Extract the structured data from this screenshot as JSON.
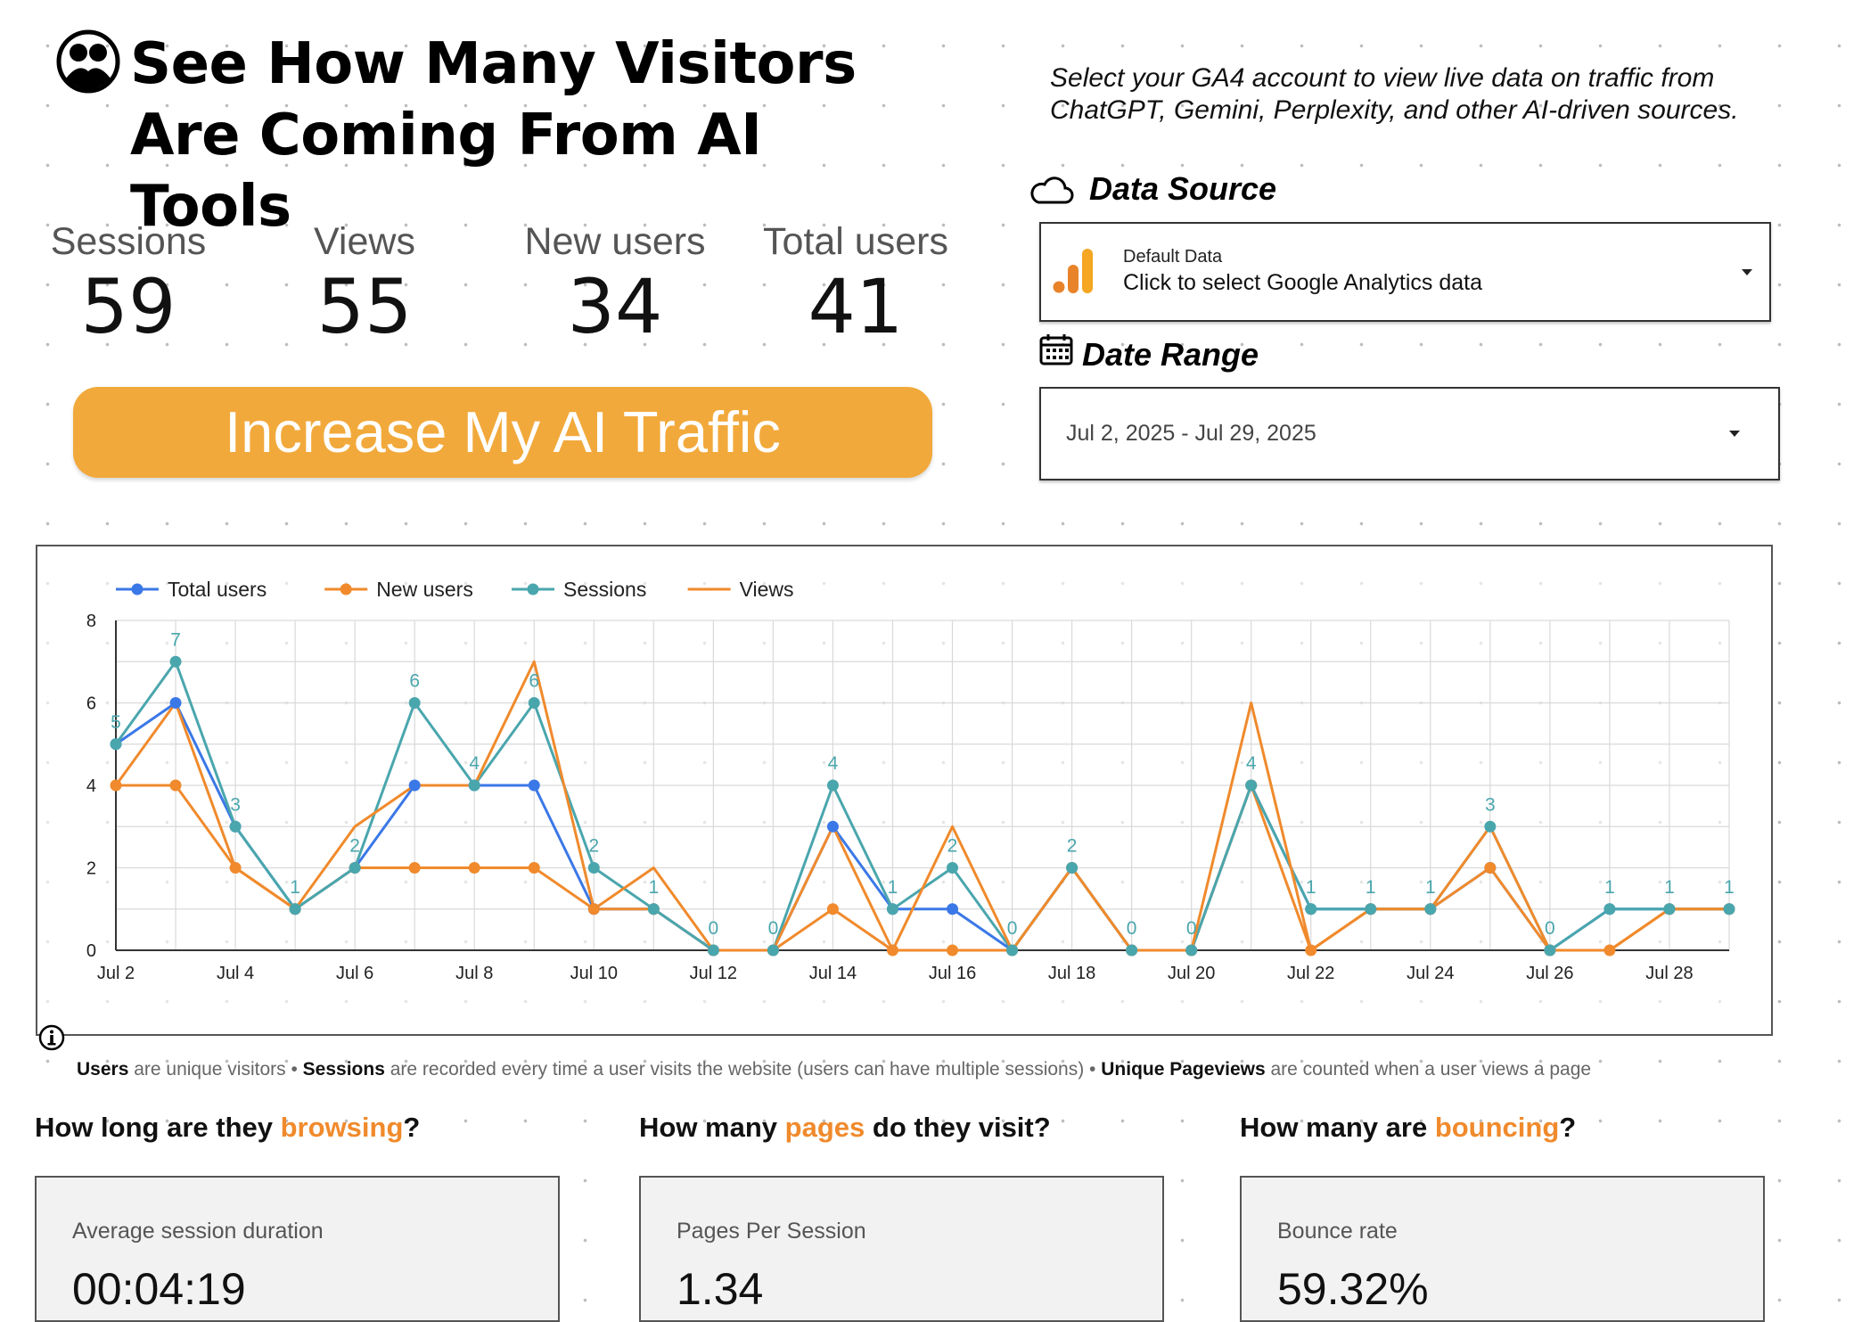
{
  "header": {
    "title": "See How Many Visitors Are Coming From AI Tools",
    "intro": "Select your GA4 account to view live data on traffic from ChatGPT, Gemini, Perplexity, and other AI-driven sources."
  },
  "metrics": [
    {
      "label": "Sessions",
      "value": "59"
    },
    {
      "label": "Views",
      "value": "55"
    },
    {
      "label": "New users",
      "value": "34"
    },
    {
      "label": "Total users",
      "value": "41"
    }
  ],
  "cta": {
    "label": "Increase My AI Traffic",
    "color": "#f2a93b"
  },
  "data_source": {
    "title": "Data Source",
    "small": "Default Data",
    "main": "Click to select Google Analytics data",
    "icon": "analytics-icon"
  },
  "date_range": {
    "title": "Date Range",
    "value": "Jul 2, 2025 - Jul 29, 2025",
    "icon": "calendar-icon"
  },
  "chart_data": {
    "type": "line",
    "x": [
      "Jul 2",
      "Jul 3",
      "Jul 4",
      "Jul 5",
      "Jul 6",
      "Jul 7",
      "Jul 8",
      "Jul 9",
      "Jul 10",
      "Jul 11",
      "Jul 12",
      "Jul 13",
      "Jul 14",
      "Jul 15",
      "Jul 16",
      "Jul 17",
      "Jul 18",
      "Jul 19",
      "Jul 20",
      "Jul 21",
      "Jul 22",
      "Jul 23",
      "Jul 24",
      "Jul 25",
      "Jul 26",
      "Jul 27",
      "Jul 28",
      "Jul 29"
    ],
    "xticks": [
      "Jul 2",
      "Jul 4",
      "Jul 6",
      "Jul 8",
      "Jul 10",
      "Jul 12",
      "Jul 14",
      "Jul 16",
      "Jul 18",
      "Jul 20",
      "Jul 22",
      "Jul 24",
      "Jul 26",
      "Jul 28"
    ],
    "ylim": [
      0,
      8
    ],
    "yticks": [
      0,
      2,
      4,
      6,
      8
    ],
    "legend_position": "top-left",
    "grid": true,
    "series": [
      {
        "name": "Total users",
        "color": "#3b78e7",
        "markers": true,
        "values": [
          5,
          6,
          3,
          1,
          2,
          4,
          4,
          4,
          1,
          1,
          0,
          0,
          3,
          1,
          1,
          0,
          2,
          0,
          0,
          4,
          1,
          1,
          1,
          2,
          0,
          1,
          1,
          1
        ]
      },
      {
        "name": "New users",
        "color": "#f08a2c",
        "markers": true,
        "values": [
          4,
          4,
          2,
          1,
          2,
          2,
          2,
          2,
          1,
          1,
          0,
          0,
          1,
          0,
          0,
          0,
          2,
          0,
          0,
          4,
          0,
          1,
          1,
          2,
          0,
          0,
          1,
          1
        ]
      },
      {
        "name": "Sessions",
        "color": "#4aa6ad",
        "markers": true,
        "labels": true,
        "values": [
          5,
          7,
          3,
          1,
          2,
          6,
          4,
          6,
          2,
          1,
          0,
          0,
          4,
          1,
          2,
          0,
          2,
          0,
          0,
          4,
          1,
          1,
          1,
          3,
          0,
          1,
          1,
          1
        ]
      },
      {
        "name": "Views",
        "color": "#f08a2c",
        "markers": false,
        "values": [
          4,
          6,
          2,
          1,
          3,
          4,
          4,
          7,
          1,
          2,
          0,
          0,
          3,
          0,
          3,
          0,
          2,
          0,
          0,
          6,
          0,
          1,
          1,
          3,
          0,
          0,
          1,
          1
        ]
      }
    ]
  },
  "footnote": {
    "users_bold": "Users",
    "users_text": " are unique visitors • ",
    "sessions_bold": "Sessions",
    "sessions_text": " are recorded every time a user visits the website (users can have multiple sessions) • ",
    "pageviews_bold": "Unique Pageviews",
    "pageviews_text": " are counted when a user views a page"
  },
  "questions": [
    {
      "pre": "How long are they ",
      "hl": "browsing",
      "post": "?",
      "card_label": "Average session duration",
      "card_value": "00:04:19"
    },
    {
      "pre": "How many ",
      "hl": "pages",
      "post": " do they visit?",
      "card_label": "Pages Per Session",
      "card_value": "1.34"
    },
    {
      "pre": "How many are ",
      "hl": "bouncing",
      "post": "?",
      "card_label": "Bounce rate",
      "card_value": "59.32%"
    }
  ]
}
